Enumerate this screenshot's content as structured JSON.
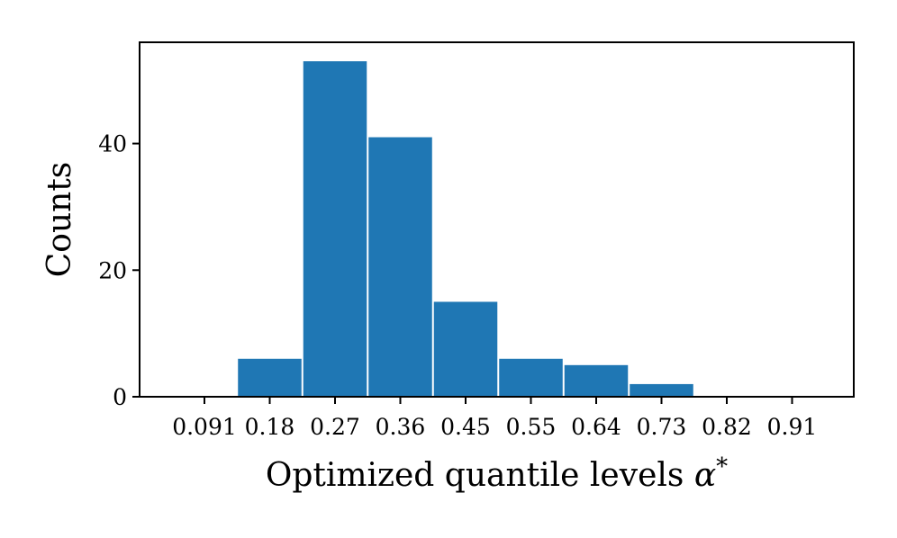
{
  "chart_data": {
    "type": "bar",
    "xlabel": "Optimized quantile levels",
    "xlabel_symbol": "α",
    "xlabel_superscript": "*",
    "ylabel": "Counts",
    "x_tick_labels": [
      "0.091",
      "0.18",
      "0.27",
      "0.36",
      "0.45",
      "0.55",
      "0.64",
      "0.73",
      "0.82",
      "0.91"
    ],
    "y_ticks": [
      0,
      20,
      40
    ],
    "ylim": [
      0,
      56
    ],
    "grid": false,
    "bar_color": "#1f77b4",
    "series": [
      {
        "bins": [
          {
            "start_tick": 1,
            "count": 6
          },
          {
            "start_tick": 2,
            "count": 53
          },
          {
            "start_tick": 3,
            "count": 41
          },
          {
            "start_tick": 4,
            "count": 15
          },
          {
            "start_tick": 5,
            "count": 6
          },
          {
            "start_tick": 6,
            "count": 5
          },
          {
            "start_tick": 7,
            "count": 2
          }
        ]
      }
    ]
  }
}
